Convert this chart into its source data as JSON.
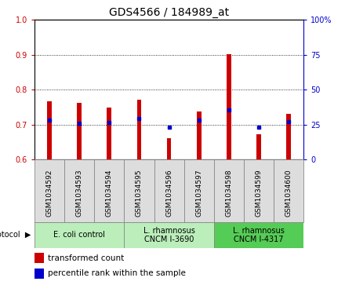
{
  "title": "GDS4566 / 184989_at",
  "samples": [
    "GSM1034592",
    "GSM1034593",
    "GSM1034594",
    "GSM1034595",
    "GSM1034596",
    "GSM1034597",
    "GSM1034598",
    "GSM1034599",
    "GSM1034600"
  ],
  "transformed_count": [
    0.768,
    0.762,
    0.748,
    0.772,
    0.662,
    0.738,
    0.902,
    0.672,
    0.73
  ],
  "percentile_rank_left": [
    0.714,
    0.703,
    0.706,
    0.718,
    0.692,
    0.712,
    0.742,
    0.692,
    0.708
  ],
  "ylim_left": [
    0.6,
    1.0
  ],
  "ylim_right": [
    0,
    100
  ],
  "yticks_left": [
    0.6,
    0.7,
    0.8,
    0.9,
    1.0
  ],
  "yticks_right": [
    0,
    25,
    50,
    75,
    100
  ],
  "bar_color": "#cc0000",
  "dot_color": "#0000cc",
  "protocol_groups": [
    {
      "label": "E. coli control",
      "start": 0,
      "end": 3,
      "color": "#bbeebb"
    },
    {
      "label": "L. rhamnosus\nCNCM I-3690",
      "start": 3,
      "end": 6,
      "color": "#bbeebb"
    },
    {
      "label": "L. rhamnosus\nCNCM I-4317",
      "start": 6,
      "end": 9,
      "color": "#55cc55"
    }
  ],
  "title_fontsize": 10,
  "tick_fontsize": 7,
  "xtick_fontsize": 6.5
}
